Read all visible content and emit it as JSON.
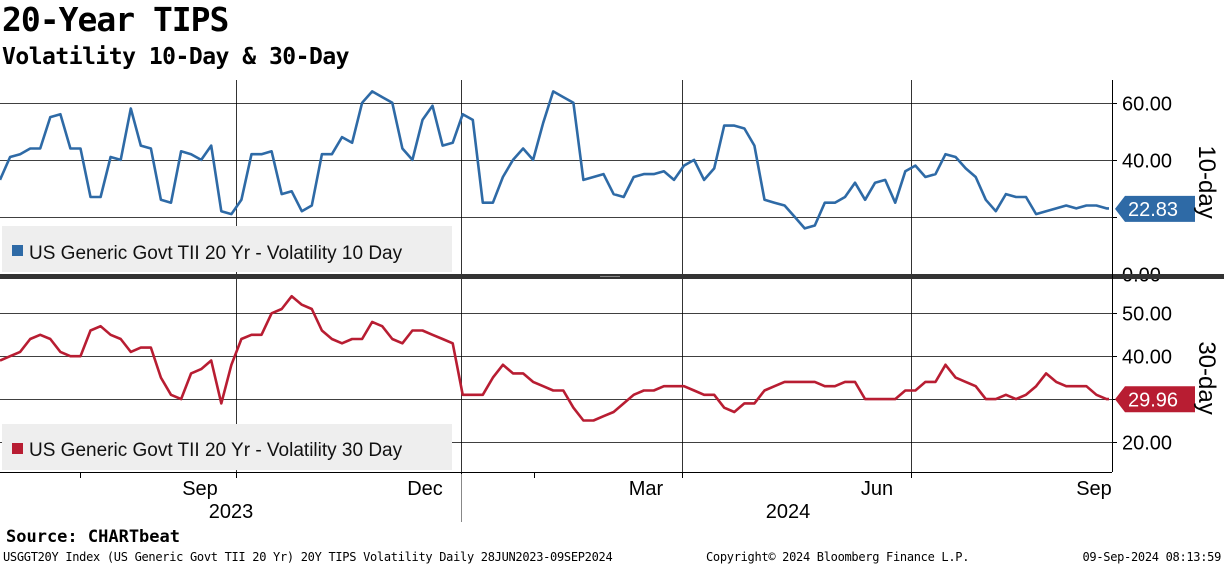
{
  "title": "20-Year TIPS",
  "subtitle": "Volatility 10-Day & 30-Day",
  "source": "Source: CHARTbeat",
  "footer": {
    "left": "USGGT20Y Index (US Generic Govt TII 20 Yr) 20Y TIPS Volatility  Daily 28JUN2023-09SEP2024",
    "center": "Copyright© 2024 Bloomberg Finance L.P.",
    "right": "09-Sep-2024 08:13:59"
  },
  "colors": {
    "series_10d": "#2e6aa6",
    "series_30d": "#b81d32",
    "grid": "#000000",
    "separator": "#333333",
    "legend_bg": "#eeeeee"
  },
  "chart_data": [
    {
      "type": "line",
      "panel_label": "10-day",
      "legend": "US Generic Govt TII 20 Yr - Volatility 10 Day",
      "last_value": "22.83",
      "ylim": [
        0,
        68
      ],
      "yticks": [
        0,
        20,
        40,
        60
      ],
      "ytick_labels": [
        "0.00",
        "",
        "40.00",
        "60.00"
      ],
      "series": [
        {
          "name": "US Generic Govt TII 20 Yr - Volatility 10 Day",
          "x": [
            0,
            4,
            8,
            12,
            16,
            20,
            24,
            28,
            32,
            36,
            40,
            44,
            48,
            52,
            56,
            60,
            64,
            68,
            72,
            76,
            80,
            84,
            88,
            92,
            96,
            100,
            104,
            108,
            112,
            116,
            120,
            124,
            128,
            132,
            136,
            140,
            144,
            148,
            152,
            156,
            160,
            164,
            168,
            172,
            176,
            180,
            184,
            188,
            192,
            196,
            200,
            204,
            208,
            212,
            216,
            220,
            224,
            228,
            232,
            236,
            240,
            244,
            248,
            252,
            256,
            260,
            264,
            268,
            272,
            276,
            280,
            284,
            288,
            292,
            296,
            300,
            304,
            308,
            312,
            316,
            320,
            324,
            328,
            332,
            336,
            340,
            344,
            348,
            352,
            356,
            360,
            364,
            368,
            372,
            376,
            380,
            384,
            388,
            392,
            396,
            400,
            404,
            408,
            412,
            416,
            420,
            424,
            428,
            432,
            436,
            440,
            441
          ],
          "values": [
            33,
            41,
            42,
            44,
            44,
            55,
            56,
            44,
            44,
            27,
            27,
            41,
            40,
            58,
            45,
            44,
            26,
            25,
            43,
            42,
            40,
            45,
            22,
            21,
            26,
            42,
            42,
            43,
            28,
            29,
            22,
            24,
            42,
            42,
            48,
            46,
            60,
            64,
            62,
            60,
            44,
            40,
            54,
            59,
            45,
            46,
            56,
            54,
            25,
            25,
            34,
            40,
            44,
            40,
            53,
            64,
            62,
            60,
            33,
            34,
            35,
            28,
            27,
            34,
            35,
            35,
            36,
            33,
            38,
            40,
            33,
            37,
            52,
            52,
            51,
            45,
            26,
            25,
            24,
            20,
            16,
            17,
            25,
            25,
            27,
            32,
            26,
            32,
            33,
            25,
            36,
            38,
            34,
            35,
            42,
            41,
            37,
            34,
            26,
            22,
            28,
            27,
            27,
            21,
            22,
            23,
            24,
            23,
            24,
            24,
            23,
            23
          ],
          "color": "#2e6aa6"
        }
      ]
    },
    {
      "type": "line",
      "panel_label": "30-day",
      "legend": "US Generic Govt TII 20 Yr - Volatility 30 Day",
      "last_value": "29.96",
      "ylim": [
        13,
        58
      ],
      "yticks": [
        20,
        30,
        40,
        50
      ],
      "ytick_labels": [
        "20.00",
        "",
        "40.00",
        "50.00"
      ],
      "series": [
        {
          "name": "US Generic Govt TII 20 Yr - Volatility 30 Day",
          "x": [
            0,
            4,
            8,
            12,
            16,
            20,
            24,
            28,
            32,
            36,
            40,
            44,
            48,
            52,
            56,
            60,
            64,
            68,
            72,
            76,
            80,
            84,
            88,
            92,
            96,
            100,
            104,
            108,
            112,
            116,
            120,
            124,
            128,
            132,
            136,
            140,
            144,
            148,
            152,
            156,
            160,
            164,
            168,
            172,
            176,
            180,
            184,
            188,
            192,
            196,
            200,
            204,
            208,
            212,
            216,
            220,
            224,
            228,
            232,
            236,
            240,
            244,
            248,
            252,
            256,
            260,
            264,
            268,
            272,
            276,
            280,
            284,
            288,
            292,
            296,
            300,
            304,
            308,
            312,
            316,
            320,
            324,
            328,
            332,
            336,
            340,
            344,
            348,
            352,
            356,
            360,
            364,
            368,
            372,
            376,
            380,
            384,
            388,
            392,
            396,
            400,
            404,
            408,
            412,
            416,
            420,
            424,
            428,
            432,
            436,
            440,
            441
          ],
          "values": [
            39,
            40,
            41,
            44,
            45,
            44,
            41,
            40,
            40,
            46,
            47,
            45,
            44,
            41,
            42,
            42,
            35,
            31,
            30,
            36,
            37,
            39,
            29,
            38,
            44,
            45,
            45,
            50,
            51,
            54,
            52,
            51,
            46,
            44,
            43,
            44,
            44,
            48,
            47,
            44,
            43,
            46,
            46,
            45,
            44,
            43,
            31,
            31,
            31,
            35,
            38,
            36,
            36,
            34,
            33,
            32,
            32,
            28,
            25,
            25,
            26,
            27,
            29,
            31,
            32,
            32,
            33,
            33,
            33,
            32,
            31,
            31,
            28,
            27,
            29,
            29,
            32,
            33,
            34,
            34,
            34,
            34,
            33,
            33,
            34,
            34,
            30,
            30,
            30,
            30,
            32,
            32,
            34,
            34,
            38,
            35,
            34,
            33,
            30,
            30,
            31,
            30,
            31,
            33,
            36,
            34,
            33,
            33,
            33,
            31,
            30,
            30
          ],
          "color": "#b81d32"
        }
      ]
    }
  ],
  "x_axis": {
    "month_labels": [
      "Sep",
      "Dec",
      "Mar",
      "Jun",
      "Sep"
    ],
    "year_labels": [
      "2023",
      "2024"
    ]
  }
}
